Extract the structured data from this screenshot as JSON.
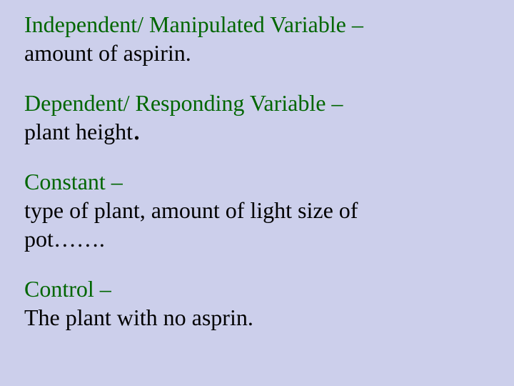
{
  "background_color": "#cccfeb",
  "heading_color": "#006600",
  "body_color": "#000000",
  "font_family": "Times New Roman, serif",
  "heading_fontsize": 32,
  "body_fontsize": 32,
  "sections": [
    {
      "heading": "Independent/ Manipulated Variable –",
      "body": "amount of aspirin."
    },
    {
      "heading": "Dependent/ Responding Variable –",
      "body_prefix": " plant height",
      "body_dot": "."
    },
    {
      "heading": "Constant –",
      "body_line1": " type of plant,  amount of light size of",
      "body_line2": "pot……."
    },
    {
      "heading": "Control –",
      "body": "The plant with no asprin."
    }
  ]
}
